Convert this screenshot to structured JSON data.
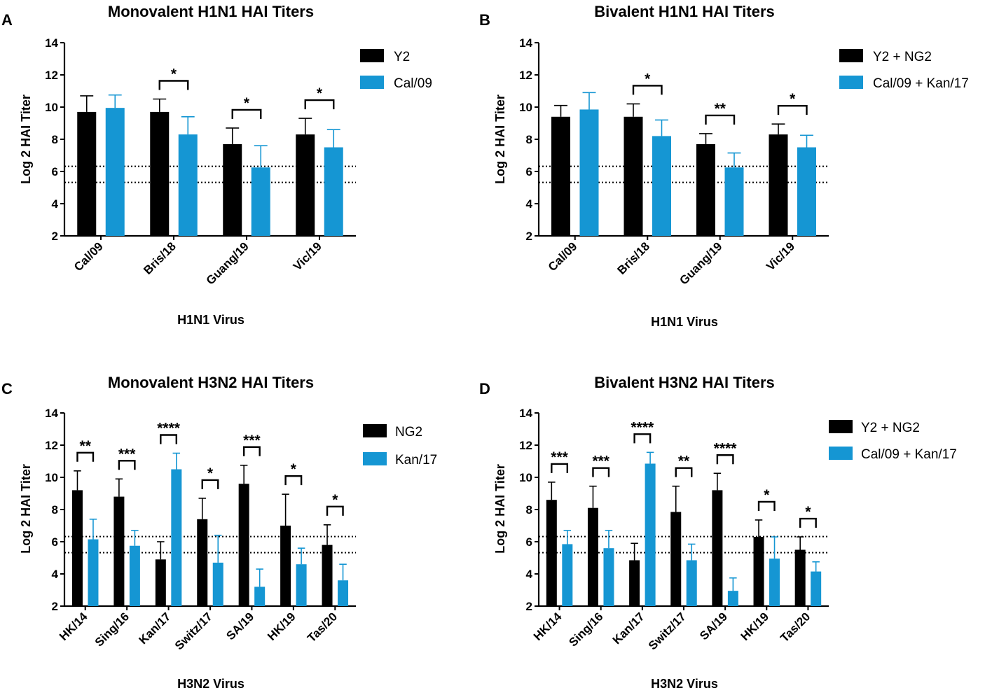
{
  "colors": {
    "series1": "#000000",
    "series2": "#1596d3"
  },
  "chart_data": [
    {
      "panel": "A",
      "type": "bar",
      "title": "Monovalent H1N1 HAI Titers",
      "xlabel": "H1N1 Virus",
      "ylabel": "Log 2 HAI Titer",
      "ylim": [
        2,
        14
      ],
      "yticks": [
        "2",
        "4",
        "6",
        "8",
        "10",
        "12",
        "14"
      ],
      "reference_lines": [
        6.32,
        5.32
      ],
      "categories": [
        "Cal/09",
        "Bris/18",
        "Guang/19",
        "Vic/19"
      ],
      "series": [
        {
          "name": "Y2",
          "values": [
            9.7,
            9.7,
            7.7,
            8.3
          ],
          "errors": [
            1.0,
            0.8,
            1.0,
            1.0
          ]
        },
        {
          "name": "Cal/09",
          "values": [
            9.95,
            8.3,
            6.25,
            7.5
          ],
          "errors": [
            0.8,
            1.1,
            1.35,
            1.1
          ]
        }
      ],
      "significance": [
        "",
        "*",
        "*",
        "*"
      ]
    },
    {
      "panel": "B",
      "type": "bar",
      "title": "Bivalent H1N1 HAI Titers",
      "xlabel": "H1N1 Virus",
      "ylabel": "Log 2 HAI Titer",
      "ylim": [
        2,
        14
      ],
      "yticks": [
        "2",
        "4",
        "6",
        "8",
        "10",
        "12",
        "14"
      ],
      "reference_lines": [
        6.32,
        5.32
      ],
      "categories": [
        "Cal/09",
        "Bris/18",
        "Guang/19",
        "Vic/19"
      ],
      "series": [
        {
          "name": "Y2 + NG2",
          "values": [
            9.4,
            9.4,
            7.7,
            8.3
          ],
          "errors": [
            0.7,
            0.8,
            0.65,
            0.65
          ]
        },
        {
          "name": "Cal/09 + Kan/17",
          "values": [
            9.85,
            8.2,
            6.25,
            7.5
          ],
          "errors": [
            1.05,
            1.0,
            0.9,
            0.75
          ]
        }
      ],
      "significance": [
        "",
        "*",
        "**",
        "*"
      ]
    },
    {
      "panel": "C",
      "type": "bar",
      "title": "Monovalent H3N2 HAI Titers",
      "xlabel": "H3N2 Virus",
      "ylabel": "Log 2 HAI Titer",
      "ylim": [
        2,
        14
      ],
      "yticks": [
        "2",
        "4",
        "6",
        "8",
        "10",
        "12",
        "14"
      ],
      "reference_lines": [
        6.32,
        5.32
      ],
      "categories": [
        "HK/14",
        "Sing/16",
        "Kan/17",
        "Switz/17",
        "SA/19",
        "HK/19",
        "Tas/20"
      ],
      "series": [
        {
          "name": "NG2",
          "values": [
            9.2,
            8.8,
            4.9,
            7.4,
            9.6,
            7.0,
            5.8
          ],
          "errors": [
            1.2,
            1.1,
            1.1,
            1.3,
            1.15,
            1.95,
            1.25
          ]
        },
        {
          "name": "Kan/17",
          "values": [
            6.15,
            5.75,
            10.5,
            4.7,
            3.2,
            4.6,
            3.6
          ],
          "errors": [
            1.25,
            0.95,
            1.0,
            1.7,
            1.1,
            1.0,
            1.0
          ]
        }
      ],
      "significance": [
        "**",
        "***",
        "****",
        "*",
        "***",
        "*",
        "*"
      ]
    },
    {
      "panel": "D",
      "type": "bar",
      "title": "Bivalent H3N2 HAI Titers",
      "xlabel": "H3N2 Virus",
      "ylabel": "Log 2 HAI Titer",
      "ylim": [
        2,
        14
      ],
      "yticks": [
        "2",
        "4",
        "6",
        "8",
        "10",
        "12",
        "14"
      ],
      "reference_lines": [
        6.32,
        5.32
      ],
      "categories": [
        "HK/14",
        "Sing/16",
        "Kan/17",
        "Switz/17",
        "SA/19",
        "HK/19",
        "Tas/20"
      ],
      "series": [
        {
          "name": "Y2 + NG2",
          "values": [
            8.6,
            8.1,
            4.85,
            7.85,
            9.2,
            6.3,
            5.5
          ],
          "errors": [
            1.1,
            1.35,
            1.05,
            1.6,
            1.05,
            1.05,
            0.8
          ]
        },
        {
          "name": "Cal/09 + Kan/17",
          "values": [
            5.85,
            5.6,
            10.85,
            4.85,
            2.95,
            4.95,
            4.15
          ],
          "errors": [
            0.85,
            1.1,
            0.7,
            1.0,
            0.8,
            1.35,
            0.6
          ]
        }
      ],
      "significance": [
        "***",
        "***",
        "****",
        "**",
        "****",
        "*",
        "*"
      ]
    }
  ]
}
